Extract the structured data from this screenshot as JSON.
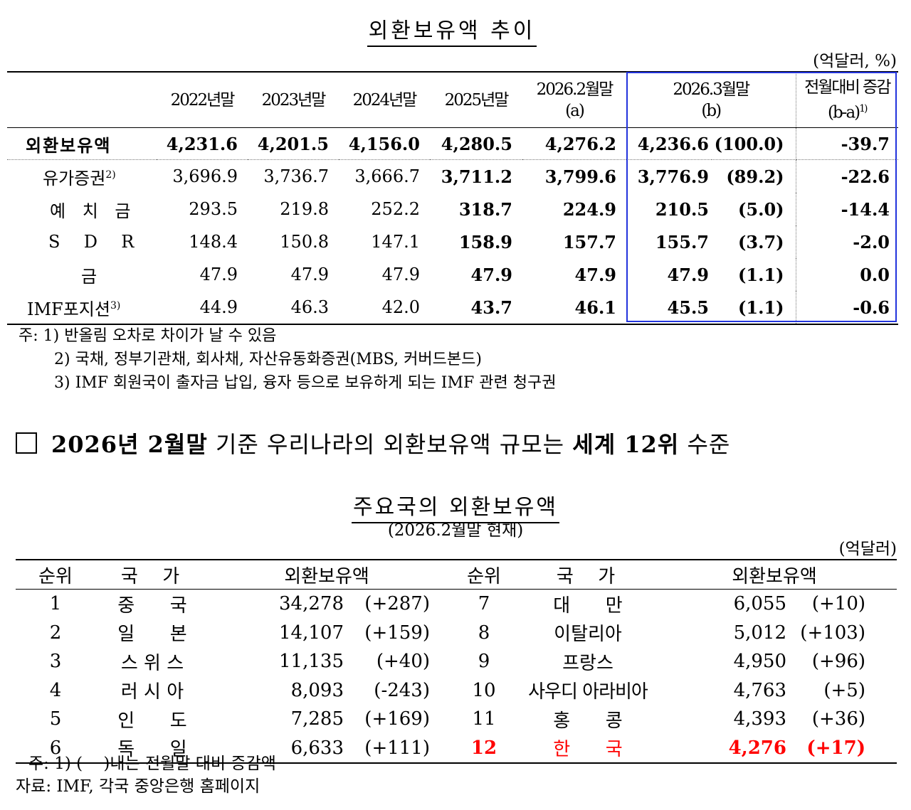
{
  "title1": "외환보유액 추이",
  "unit1": "(억달러, %)",
  "table1": {
    "headers": [
      "2022년말",
      "2023년말",
      "2024년말",
      "2025년말",
      "2026.2월말",
      "(a)",
      "2026.3월말",
      "(b)",
      "전월대비 증감",
      "(b-a)",
      "1)"
    ],
    "rows": [
      {
        "label": "외환보유액",
        "sup": "",
        "v": [
          "4,231.6",
          "4,201.5",
          "4,156.0",
          "4,280.5",
          "4,276.2"
        ],
        "b": "4,236.6",
        "share": "(100.0)",
        "diff": "-39.7"
      },
      {
        "label": "유가증권",
        "sup": "2)",
        "v": [
          "3,696.9",
          "3,736.7",
          "3,666.7",
          "3,711.2",
          "3,799.6"
        ],
        "b": "3,776.9",
        "share": "(89.2)",
        "diff": "-22.6"
      },
      {
        "label": "예 치 금",
        "sup": "",
        "v": [
          "293.5",
          "219.8",
          "252.2",
          "318.7",
          "224.9"
        ],
        "b": "210.5",
        "share": "(5.0)",
        "diff": "-14.4"
      },
      {
        "label": "S  D  R",
        "sup": "",
        "v": [
          "148.4",
          "150.8",
          "147.1",
          "158.9",
          "157.7"
        ],
        "b": "155.7",
        "share": "(3.7)",
        "diff": "-2.0"
      },
      {
        "label": "금",
        "sup": "",
        "v": [
          "47.9",
          "47.9",
          "47.9",
          "47.9",
          "47.9"
        ],
        "b": "47.9",
        "share": "(1.1)",
        "diff": "0.0"
      },
      {
        "label": "IMF포지션",
        "sup": "3)",
        "v": [
          "44.9",
          "46.3",
          "42.0",
          "43.7",
          "46.1"
        ],
        "b": "45.5",
        "share": "(1.1)",
        "diff": "-0.6"
      }
    ]
  },
  "notes1": [
    "주: 1) 반올림 오차로 차이가 날 수 있음",
    "2) 국채, 정부기관채, 회사채, 자산유동화증권(MBS, 커버드본드)",
    "3) IMF 회원국이 출자금 납입, 융자 등으로 보유하게 되는 IMF 관련 청구권"
  ],
  "heading2": {
    "p1": "2026년 2월말",
    "p2": " 기준 우리나라의 외환보유액 규모는 ",
    "p3": "세계 12위",
    "p4": " 수준"
  },
  "title2": "주요국의 외환보유액",
  "subtitle2": "(2026.2월말 현재)",
  "unit2": "(억달러)",
  "table2": {
    "headers": [
      "순위",
      "국  가",
      "외환보유액",
      "순위",
      "국  가",
      "외환보유액"
    ],
    "rows": [
      {
        "l": {
          "rank": "1",
          "country": "중      국",
          "amount": "34,278",
          "change": "(+287)"
        },
        "r": {
          "rank": "7",
          "country": "대      만",
          "amount": "6,055",
          "change": "(+10)"
        }
      },
      {
        "l": {
          "rank": "2",
          "country": "일      본",
          "amount": "14,107",
          "change": "(+159)"
        },
        "r": {
          "rank": "8",
          "country": "이탈리아",
          "amount": "5,012",
          "change": "(+103)"
        }
      },
      {
        "l": {
          "rank": "3",
          "country": "스 위 스",
          "amount": "11,135",
          "change": "(+40)"
        },
        "r": {
          "rank": "9",
          "country": "프랑스",
          "amount": "4,950",
          "change": "(+96)"
        }
      },
      {
        "l": {
          "rank": "4",
          "country": "러 시 아",
          "amount": "8,093",
          "change": "(-243)"
        },
        "r": {
          "rank": "10",
          "country": "사우디 아라비아",
          "amount": "4,763",
          "change": "(+5)"
        }
      },
      {
        "l": {
          "rank": "5",
          "country": "인      도",
          "amount": "7,285",
          "change": "(+169)"
        },
        "r": {
          "rank": "11",
          "country": "홍      콩",
          "amount": "4,393",
          "change": "(+36)"
        }
      },
      {
        "l": {
          "rank": "6",
          "country": "독      일",
          "amount": "6,633",
          "change": "(+111)"
        },
        "r": {
          "rank": "12",
          "country": "한      국",
          "amount": "4,276",
          "change": "(+17)"
        }
      }
    ]
  },
  "notes2": [
    "주: 1) (    )내는 전월말 대비 증감액",
    "자료: IMF, 각국 중앙은행 홈페이지"
  ],
  "colors": {
    "highlight_box": "#2233dd",
    "korea_row": "#ff0000"
  }
}
